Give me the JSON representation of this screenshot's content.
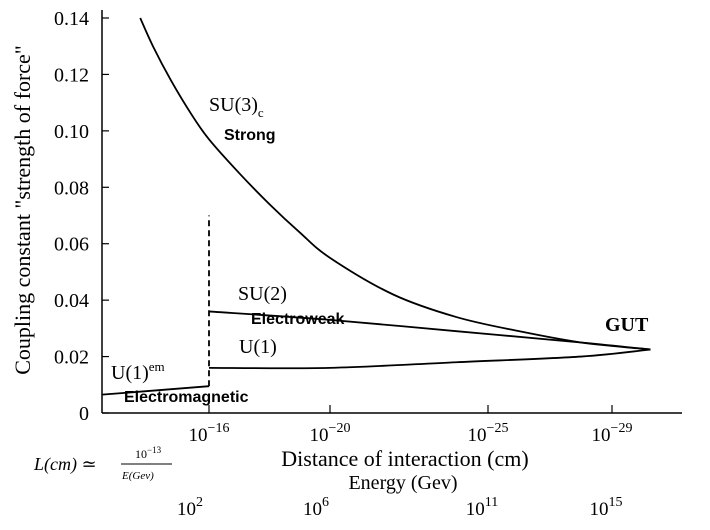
{
  "chart_data": {
    "type": "line",
    "ylabel": "Coupling constant \"strength of force\"",
    "xlabel": "Distance of interaction (cm)",
    "xlabel2": "Energy (Gev)",
    "ylim": [
      0,
      0.14
    ],
    "y_ticks": [
      "0",
      "0.02",
      "0.04",
      "0.06",
      "0.08",
      "0.10",
      "0.12",
      "0.14"
    ],
    "x_axis": {
      "ticks": [
        {
          "base": "10",
          "exp": "−16",
          "value": -16
        },
        {
          "base": "10",
          "exp": "−20",
          "value": -20
        },
        {
          "base": "10",
          "exp": "−25",
          "value": -25
        },
        {
          "base": "10",
          "exp": "−29",
          "value": -29
        }
      ]
    },
    "energy_axis": {
      "ticks": [
        {
          "base": "10",
          "exp": "2",
          "value": 2
        },
        {
          "base": "10",
          "exp": "6",
          "value": 6
        },
        {
          "base": "10",
          "exp": "11",
          "value": 11
        },
        {
          "base": "10",
          "exp": "15",
          "value": 15
        }
      ]
    },
    "formula": {
      "lhs": "L(cm) ≃",
      "numerator_base": "10",
      "numerator_exp": "−13",
      "denominator": "E(Gev)"
    },
    "series": [
      {
        "label_main": "SU(3)",
        "label_sub": "c",
        "label_name": "Strong",
        "x": [
          -13.3,
          -13.8,
          -14.5,
          -15.3,
          -16,
          -17,
          -18,
          -19,
          -20,
          -22,
          -24,
          -26,
          -28,
          -30.1
        ],
        "y": [
          0.14,
          0.13,
          0.118,
          0.106,
          0.097,
          0.085,
          0.074,
          0.064,
          0.055,
          0.042,
          0.034,
          0.029,
          0.025,
          0.0225
        ]
      },
      {
        "label_main": "SU(2)",
        "label_name": "Electroweak",
        "x": [
          -16,
          -20,
          -24,
          -28,
          -30.1
        ],
        "y": [
          0.036,
          0.033,
          0.029,
          0.025,
          0.0225
        ]
      },
      {
        "label_main": "U(1)",
        "x": [
          -16,
          -20,
          -24,
          -28,
          -30.1
        ],
        "y": [
          0.016,
          0.016,
          0.018,
          0.02,
          0.0225
        ]
      },
      {
        "label_main": "U(1)",
        "label_sup": "em",
        "label_name": "Electromagnetic",
        "x": [
          -11.8,
          -16
        ],
        "y": [
          0.0065,
          0.0095
        ]
      }
    ],
    "boundary": {
      "x": -16,
      "y_from": 0.0095,
      "y_to": 0.07,
      "style": "dashed"
    },
    "annotation": "GUT",
    "annotation_point": {
      "x": -30.1,
      "y": 0.0225
    }
  }
}
